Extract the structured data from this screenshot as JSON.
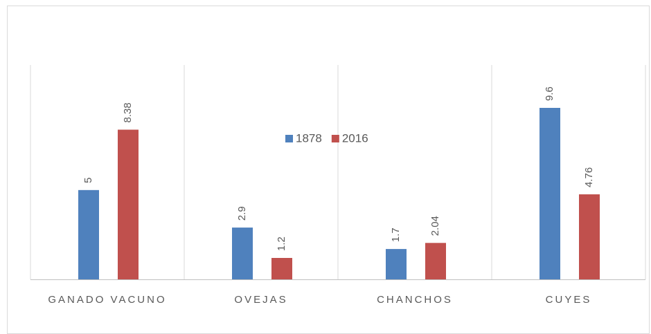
{
  "chart_data": {
    "type": "bar",
    "categories": [
      "GANADO VACUNO",
      "OVEJAS",
      "CHANCHOS",
      "CUYES"
    ],
    "series": [
      {
        "name": "1878",
        "color": "#4f81bd",
        "values": [
          5,
          2.9,
          1.7,
          9.6
        ]
      },
      {
        "name": "2016",
        "color": "#c0504d",
        "values": [
          8.38,
          1.2,
          2.04,
          4.76
        ]
      }
    ],
    "ylim": [
      0,
      12
    ]
  }
}
